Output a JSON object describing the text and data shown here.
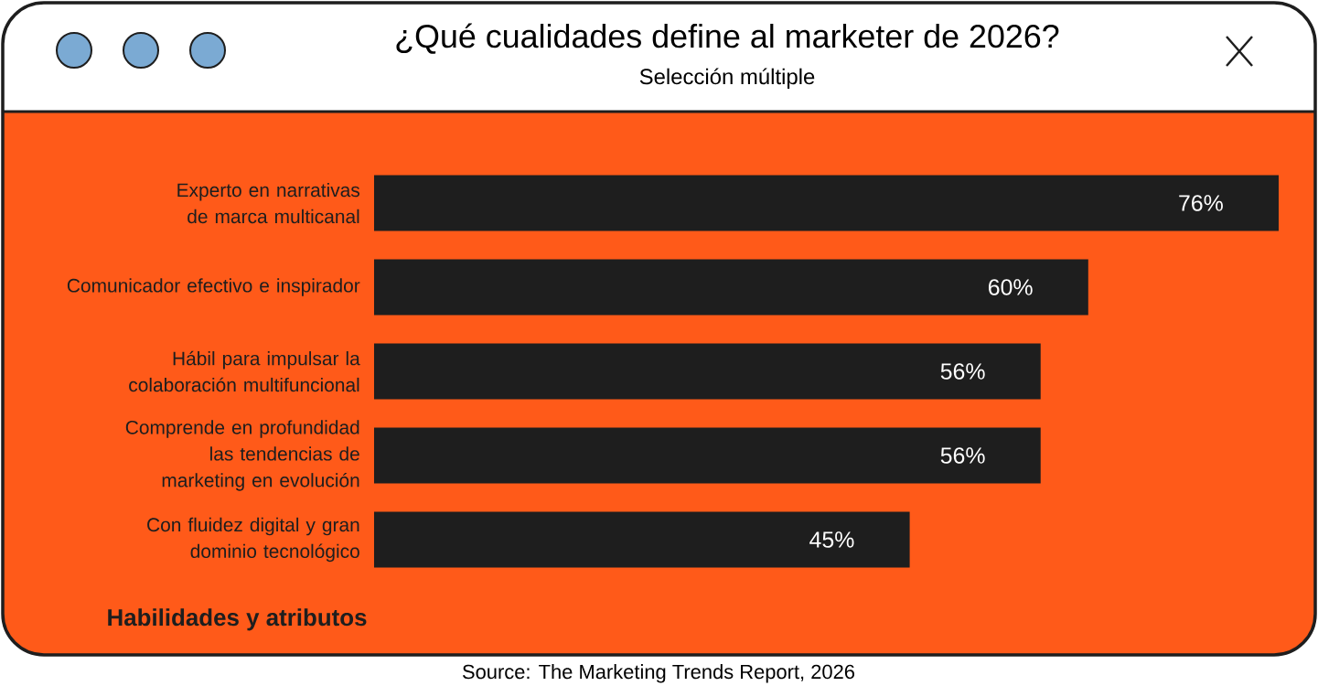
{
  "chart_data": {
    "type": "bar",
    "orientation": "horizontal",
    "title": "¿Qué cualidades define al marketer de 2026?",
    "subtitle": "Selección múltiple",
    "categories": [
      "Experto en narrativas de marca multicanal",
      "Comunicador efectivo e inspirador",
      "Hábil para impulsar la colaboración multifuncional",
      "Comprende en profundidad las tendencias de marketing en evolución",
      "Con fluidez digital y gran dominio tecnológico"
    ],
    "values": [
      76,
      60,
      56,
      56,
      45
    ],
    "value_labels": [
      "76%",
      "60%",
      "56%",
      "56%",
      "45%"
    ],
    "color": "#1e1e1e",
    "tick_labels": "y",
    "annotations": [
      "Habilidades y atributos",
      "Source: The Marketing Trends Report, 2026"
    ]
  }
}
